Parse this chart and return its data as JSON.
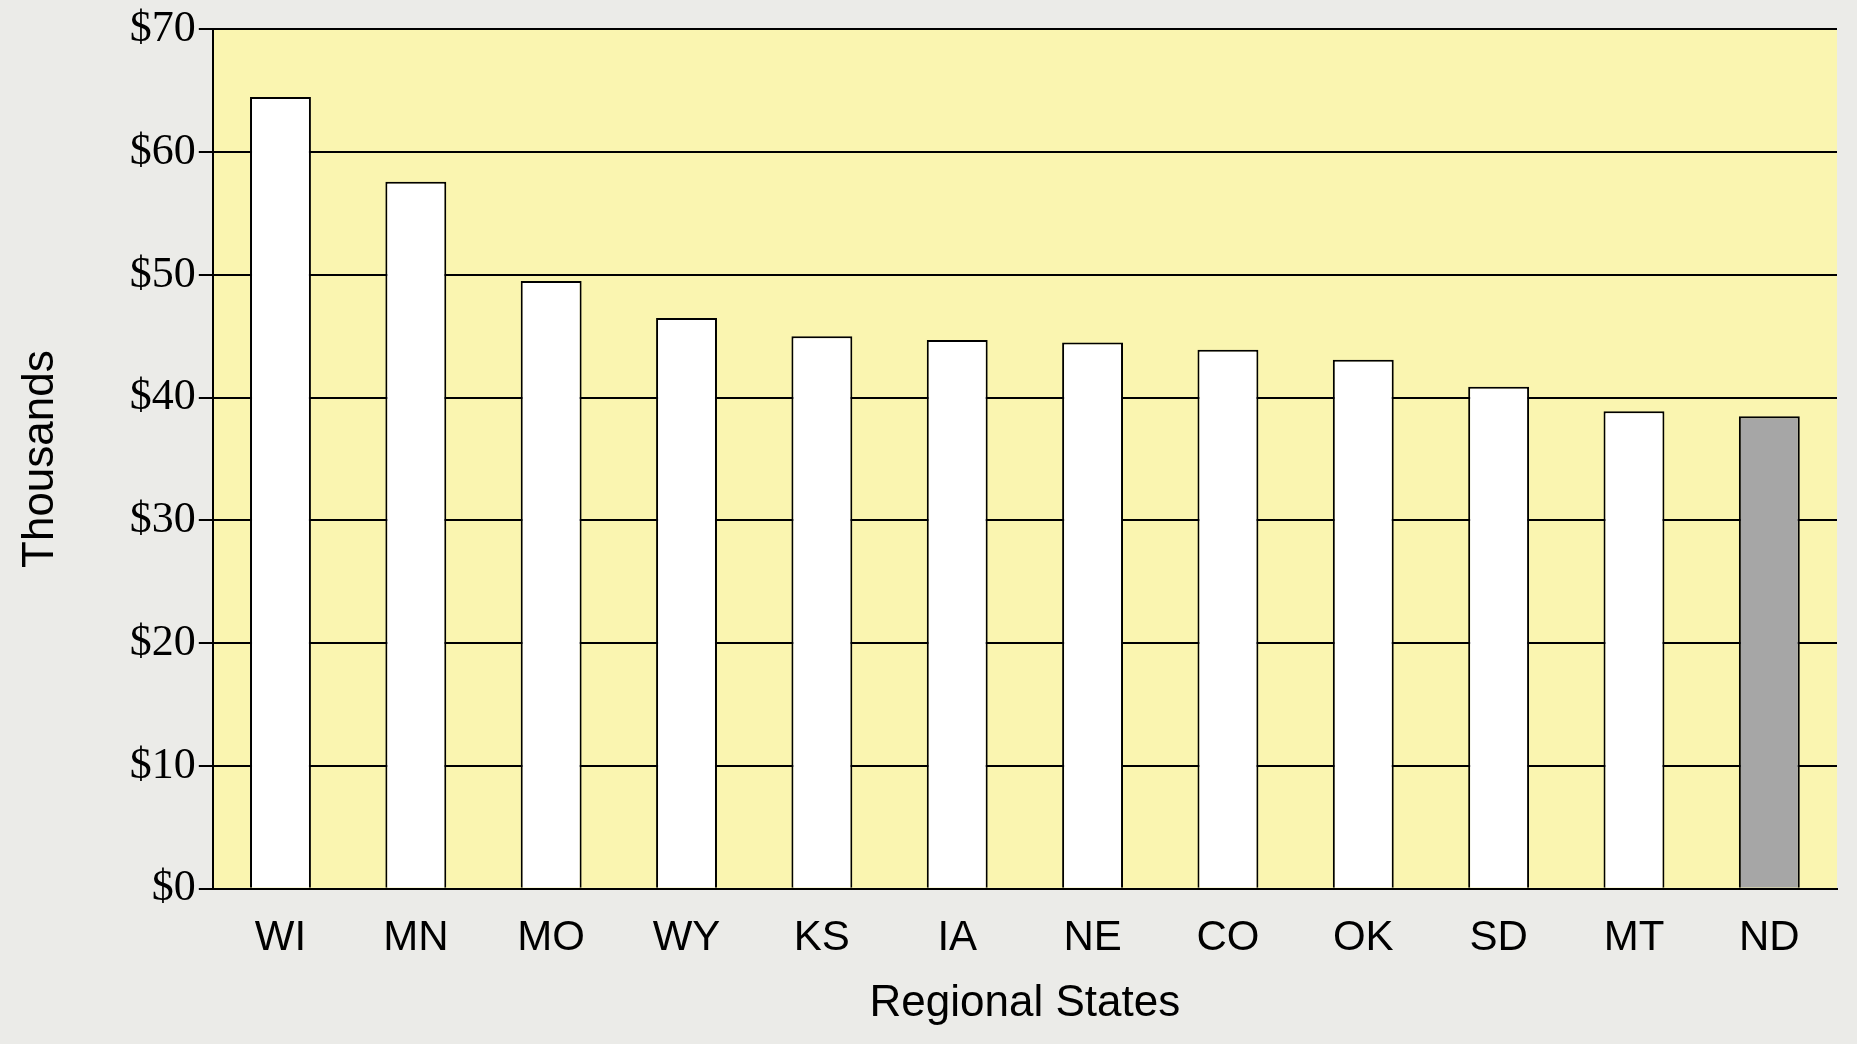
{
  "chart_data": {
    "type": "bar",
    "xlabel": "Regional States",
    "ylabel": "Thousands",
    "categories": [
      "WI",
      "MN",
      "MO",
      "WY",
      "KS",
      "IA",
      "NE",
      "CO",
      "OK",
      "SD",
      "MT",
      "ND"
    ],
    "values": [
      64.5,
      57.6,
      49.5,
      46.5,
      45,
      44.7,
      44.5,
      43.9,
      43.1,
      40.9,
      38.9,
      38.5
    ],
    "colors": [
      "#ffffff",
      "#ffffff",
      "#ffffff",
      "#ffffff",
      "#ffffff",
      "#ffffff",
      "#ffffff",
      "#ffffff",
      "#ffffff",
      "#ffffff",
      "#ffffff",
      "#a6a6a6"
    ],
    "ylim": [
      0,
      70
    ],
    "yticks": [
      {
        "value": 0,
        "label": "$0"
      },
      {
        "value": 10,
        "label": "$10"
      },
      {
        "value": 20,
        "label": "$20"
      },
      {
        "value": 30,
        "label": "$30"
      },
      {
        "value": 40,
        "label": "$40"
      },
      {
        "value": 50,
        "label": "$50"
      },
      {
        "value": 60,
        "label": "$60"
      },
      {
        "value": 70,
        "label": "$70"
      }
    ],
    "grid": "y",
    "legend": false
  }
}
